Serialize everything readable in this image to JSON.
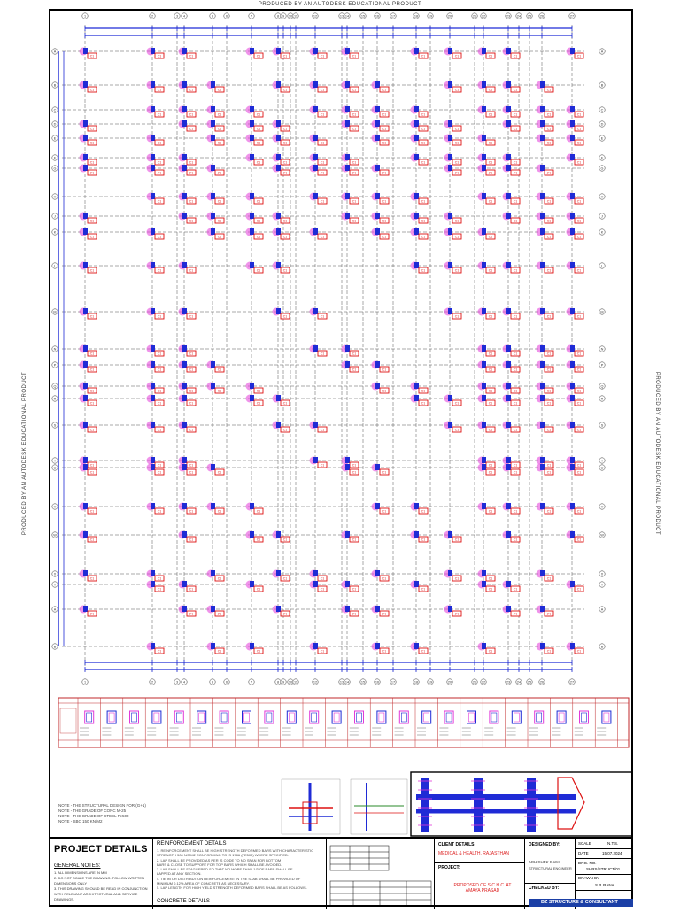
{
  "watermark": "PRODUCED BY AN AUTODESK EDUCATIONAL PRODUCT",
  "colors": {
    "grid_line": "#555555",
    "column": "#1f2bd6",
    "rebar": "#e23ad8",
    "tag": "#dd1111",
    "axis_blue": "#1f2bd6",
    "schedule_red": "#c0292b",
    "title_block": "#000000"
  },
  "drawing": {
    "grid_bubble_cols": [
      "1",
      "2",
      "3",
      "4",
      "5",
      "6",
      "7",
      "8",
      "9",
      "10",
      "11",
      "12",
      "13",
      "14",
      "15",
      "16",
      "17",
      "18",
      "19",
      "20",
      "21",
      "22",
      "23",
      "24",
      "25",
      "26",
      "27",
      "28",
      "29",
      "30",
      "31",
      "32"
    ],
    "grid_bubble_rows": [
      "A",
      "B",
      "C",
      "D",
      "E",
      "F",
      "G",
      "H",
      "J",
      "K",
      "L",
      "M",
      "N",
      "P",
      "Q",
      "R",
      "S",
      "T",
      "U",
      "V",
      "W",
      "X",
      "Y"
    ],
    "column_tag": "C1",
    "notes": [
      "NOTE - THE STRUCTURAL DESIGN FOR (G+1)",
      "NOTE - THE GRADE OF CONC M-25",
      "NOTE - THE GRADE OF STEEL Fe500",
      "NOTE - SBC 150 KN/M2"
    ]
  },
  "title_block": {
    "project_details_label": "PROJECT DETAILS",
    "general_notes_label": "GENERAL NOTES:",
    "general_notes": [
      "1. ALL DIMENSIONS ARE IN MM",
      "2. DO NOT SCALE THE DRAWING. FOLLOW WRITTEN DIMENSIONS ONLY",
      "3. THIS DRAWING SHOULD BE READ IN CONJUNCTION WITH RELEVANT ARCHITECTURAL AND SERVICE DRAWINGS."
    ],
    "reinforcement_label": "REINFORCEMENT DETAILS",
    "reinforcement_lines": [
      "1. REINFORCEMENT SHALL BE HIGH STRENGTH DEFORMED BARS WITH CHARACTERISTIC",
      "STRENGTH 500 N/MM2 CONFORMING TO IS 1786 (FE500) WHERE SPECIFIED.",
      "2. LAP SHALL BE PROVIDED AS PER IS CODE TO NO SPAN FOR BOTTOM",
      "BARS & CLOSE TO SUPPORT FOR TOP BARS WHICH SHALL BE AVOIDED.",
      "3. LAP SHALL BE STAGGERED SO THAT NO MORE THAN 1/3 OF BARS SHALL BE",
      "LAPPED AT ANY SECTION.",
      "4. TIE IN OR DISTRIBUTION REINFORCEMENT IN THE SLAB SHALL BE PROVIDED OF",
      "MINIMUM 0.12% AREA OF CONCRETE AS NECESSARY.",
      "5. LAP LENGTH FOR HIGH YIELD STRENGTH DEFORMED BARS SHALL BE AS FOLLOWS."
    ],
    "concrete_label": "CONCRETE DETAILS",
    "client_details_label": "CLIENT DETAILS:",
    "client_name": "MEDICAL & HEALTH, RAJASTHAN",
    "project_label": "PROJECT:",
    "project_name": "PROPOSED OF S.C.H.C. AT AMAYA PRASAD",
    "designed_by_label": "DESIGNED BY:",
    "designed_by_name": "ABHISHEK RANI",
    "designed_by_role": "STRUCTURAL ENGINEER",
    "checked_by_label": "CHECKED BY:",
    "scale_label": "SCALE",
    "scale_value": "N.T.S.",
    "date_label": "DATE",
    "date_value": "15.07.2024",
    "drg_label": "DRG. NO.",
    "drg_value": "SHRS/STRUCT/01",
    "drawn_by_label": "DRAWN BY",
    "drawn_by_value": "S.P. RANA",
    "firm_name": "BZ STRUCTURE & CONSULTANT"
  }
}
